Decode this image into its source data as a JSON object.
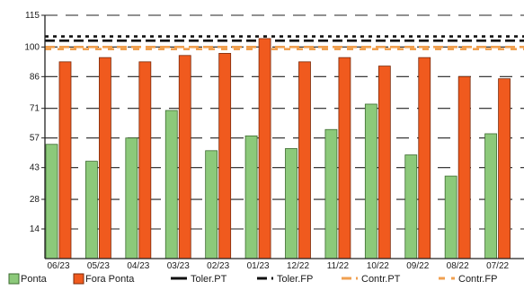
{
  "chart_data": {
    "type": "bar",
    "title": "",
    "xlabel": "",
    "ylabel": "",
    "ylim": [
      0,
      115
    ],
    "yticks": [
      14,
      28,
      43,
      57,
      71,
      86,
      100,
      115
    ],
    "categories": [
      "06/23",
      "05/23",
      "04/23",
      "03/23",
      "02/23",
      "01/23",
      "12/22",
      "11/22",
      "10/22",
      "09/22",
      "08/22",
      "07/22"
    ],
    "series": [
      {
        "name": "Ponta",
        "color": "#8cc97a",
        "values": [
          54,
          46,
          57,
          70,
          51,
          58,
          52,
          61,
          73,
          49,
          39,
          59
        ]
      },
      {
        "name": "Fora Ponta",
        "color": "#f05a1e",
        "values": [
          93,
          95,
          93,
          96,
          97,
          104,
          93,
          95,
          91,
          95,
          86,
          85
        ]
      }
    ],
    "reference_lines": [
      {
        "name": "Toler.PT",
        "value": 105,
        "color": "#111111",
        "style": "short-dash"
      },
      {
        "name": "Toler.FP",
        "value": 103,
        "color": "#111111",
        "style": "long-dash"
      },
      {
        "name": "Contr.PT",
        "value": 100,
        "color": "#f0a050",
        "style": "long-dash"
      },
      {
        "name": "Contr.FP",
        "value": 99,
        "color": "#f0a050",
        "style": "dash"
      }
    ],
    "grid": true,
    "legend": "bottom"
  }
}
